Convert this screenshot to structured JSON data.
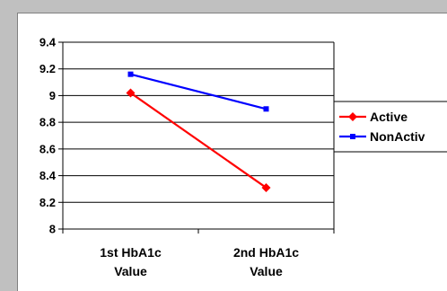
{
  "chart_data": {
    "type": "line",
    "categories": [
      "1st HbA1c Value",
      "2nd HbA1c Value"
    ],
    "category_lines": [
      [
        "1st HbA1c",
        "Value"
      ],
      [
        "2nd HbA1c",
        "Value"
      ]
    ],
    "series": [
      {
        "name": "Active",
        "values": [
          9.02,
          8.31
        ],
        "color": "#ff0000",
        "marker": "diamond"
      },
      {
        "name": "NonActiv",
        "values": [
          9.16,
          8.9
        ],
        "color": "#0000ff",
        "marker": "square"
      }
    ],
    "title": "",
    "xlabel": "",
    "ylabel": "",
    "ylim": [
      8,
      9.4
    ],
    "yticks": [
      8,
      8.2,
      8.4,
      8.6,
      8.8,
      9,
      9.2,
      9.4
    ],
    "ytick_labels": [
      "8",
      "8.2",
      "8.4",
      "8.6",
      "8.8",
      "9",
      "9.2",
      "9.4"
    ],
    "grid": true,
    "legend_position": "right",
    "background": "#c0c0c0",
    "plot_background": "#ffffff"
  }
}
